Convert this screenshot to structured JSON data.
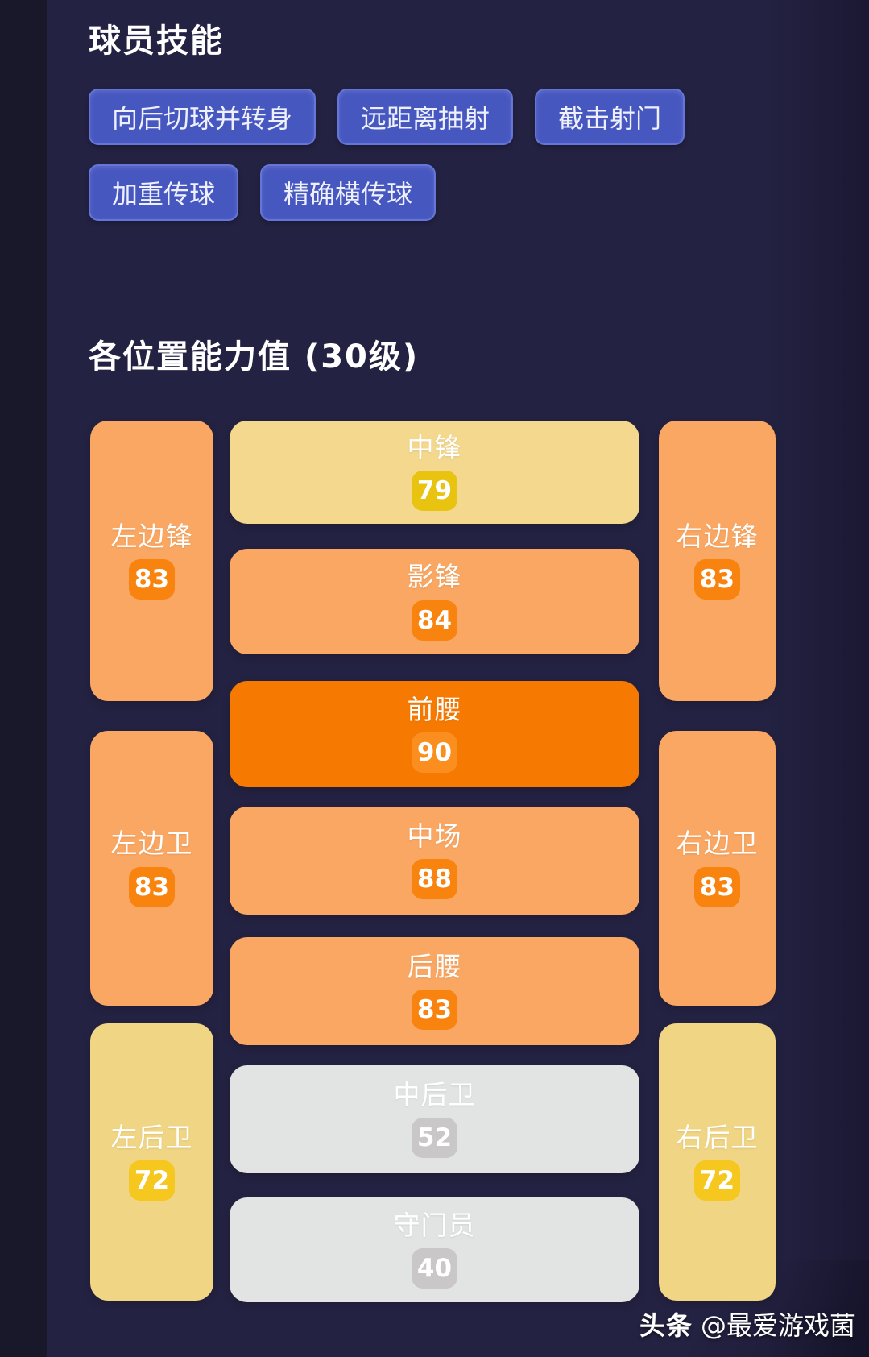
{
  "page": {
    "bg": "#242242",
    "left_strip_color": "#18182a"
  },
  "skills": {
    "title": "球员技能",
    "tag_bg": "#4757c0",
    "tag_border": "#6477d8",
    "rows": [
      [
        "向后切球并转身",
        "远距离抽射",
        "截击射门"
      ],
      [
        "加重传球",
        "精确横传球"
      ]
    ]
  },
  "positions": {
    "title": "各位置能力值 (30级)",
    "tiers": {
      "sandy": {
        "card": "#f3d88e",
        "badge": "#e8c310"
      },
      "orange": {
        "card": "#f9a762",
        "badge": "#f8830f"
      },
      "vivid": {
        "card": "#f67a02",
        "badge": "#fa8e1e"
      },
      "grey": {
        "card": "#e1e4e3",
        "badge": "#c9c7c7"
      },
      "yellow": {
        "card": "#f0d584",
        "badge": "#f6c71f"
      }
    },
    "items": [
      {
        "id": "cf",
        "label": "中锋",
        "value": 79,
        "tier": "sandy"
      },
      {
        "id": "ss",
        "label": "影锋",
        "value": 84,
        "tier": "orange"
      },
      {
        "id": "amf",
        "label": "前腰",
        "value": 90,
        "tier": "vivid"
      },
      {
        "id": "cmf",
        "label": "中场",
        "value": 88,
        "tier": "orange"
      },
      {
        "id": "dmf",
        "label": "后腰",
        "value": 83,
        "tier": "orange"
      },
      {
        "id": "cb",
        "label": "中后卫",
        "value": 52,
        "tier": "grey"
      },
      {
        "id": "gk",
        "label": "守门员",
        "value": 40,
        "tier": "grey"
      },
      {
        "id": "lwf",
        "label": "左边锋",
        "value": 83,
        "tier": "orange"
      },
      {
        "id": "lsb",
        "label": "左边卫",
        "value": 83,
        "tier": "orange"
      },
      {
        "id": "lfb",
        "label": "左后卫",
        "value": 72,
        "tier": "yellow"
      },
      {
        "id": "rwf",
        "label": "右边锋",
        "value": 83,
        "tier": "orange"
      },
      {
        "id": "rsb",
        "label": "右边卫",
        "value": 83,
        "tier": "orange"
      },
      {
        "id": "rfb",
        "label": "右后卫",
        "value": 72,
        "tier": "yellow"
      }
    ]
  },
  "watermark": {
    "brand": "头条",
    "handle": "@最爱游戏菌"
  }
}
